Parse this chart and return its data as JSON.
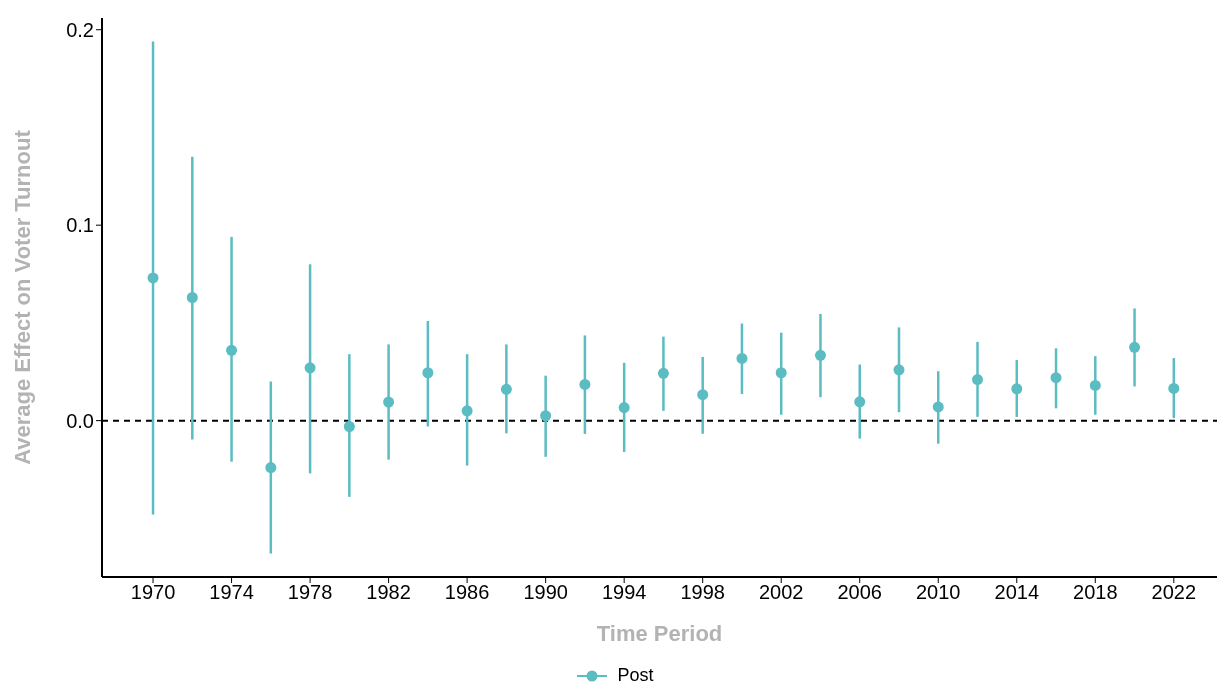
{
  "chart_data": {
    "type": "scatter",
    "xlabel": "Time Period",
    "ylabel": "Average Effect on Voter Turnout",
    "x": [
      1970,
      1972,
      1974,
      1976,
      1978,
      1980,
      1982,
      1984,
      1986,
      1988,
      1990,
      1992,
      1994,
      1996,
      1998,
      2000,
      2002,
      2004,
      2006,
      2008,
      2010,
      2012,
      2014,
      2016,
      2018,
      2020,
      2022
    ],
    "series": [
      {
        "name": "Post",
        "color": "#5bbcc2",
        "values": [
          0.073,
          0.063,
          0.036,
          -0.024,
          0.027,
          -0.003,
          0.0095,
          0.0245,
          0.005,
          0.016,
          0.0025,
          0.0185,
          0.0067,
          0.0242,
          0.0133,
          0.0318,
          0.0245,
          0.0334,
          0.0096,
          0.026,
          0.007,
          0.021,
          0.0163,
          0.022,
          0.018,
          0.0375,
          0.0165
        ],
        "errors": [
          [
            -0.048,
            0.194
          ],
          [
            -0.0096,
            0.135
          ],
          [
            -0.021,
            0.094
          ],
          [
            -0.068,
            0.02
          ],
          [
            -0.027,
            0.08
          ],
          [
            -0.039,
            0.034
          ],
          [
            -0.02,
            0.039
          ],
          [
            -0.003,
            0.051
          ],
          [
            -0.023,
            0.034
          ],
          [
            -0.0065,
            0.039
          ],
          [
            -0.0185,
            0.023
          ],
          [
            -0.0068,
            0.0436
          ],
          [
            -0.016,
            0.0296
          ],
          [
            0.005,
            0.043
          ],
          [
            -0.0067,
            0.0326
          ],
          [
            0.0136,
            0.0497
          ],
          [
            0.003,
            0.045
          ],
          [
            0.012,
            0.0546
          ],
          [
            -0.0092,
            0.0287
          ],
          [
            0.0043,
            0.0477
          ],
          [
            -0.0118,
            0.0253
          ],
          [
            0.0019,
            0.0403
          ],
          [
            0.0019,
            0.031
          ],
          [
            0.0063,
            0.037
          ],
          [
            0.003,
            0.033
          ],
          [
            0.0175,
            0.0574
          ],
          [
            0.0013,
            0.032
          ]
        ]
      }
    ],
    "xlim": [
      1967.4,
      2024.2
    ],
    "xticks": [
      1970,
      1974,
      1978,
      1982,
      1986,
      1990,
      1994,
      1998,
      2002,
      2006,
      2010,
      2014,
      2018,
      2022
    ],
    "ylim": [
      -0.08,
      0.206
    ],
    "yticks": [
      {
        "value": 0,
        "label": "0.0"
      },
      0.1,
      0.2
    ],
    "ref_lines": [
      {
        "axis": "y",
        "value": 0,
        "color": "#000000",
        "line_style": "dashed"
      }
    ],
    "marker": "circle",
    "legend": "bottom"
  }
}
